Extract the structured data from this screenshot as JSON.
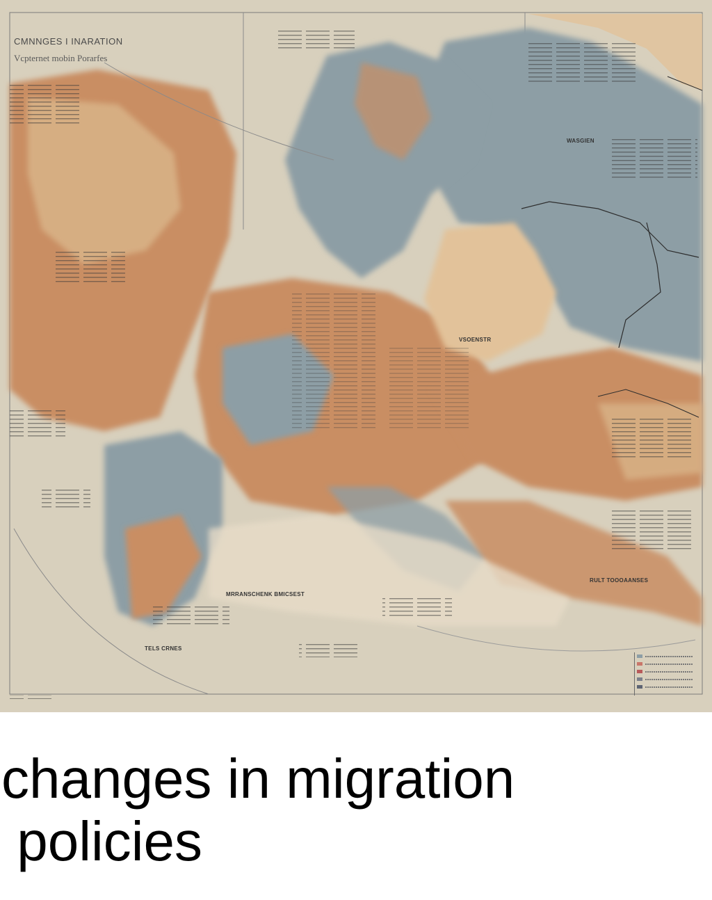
{
  "map": {
    "title": "CMNNGES I INARATION",
    "subtitle": "Vcpternet mobin Porarfes",
    "labels": [
      {
        "name": "label-wasgien",
        "text": "WASGIEN"
      },
      {
        "name": "label-vsoenstr",
        "text": "VSOENSTR"
      },
      {
        "name": "label-mrranschenk",
        "text": "MRRANSCHENK BMICSEST"
      },
      {
        "name": "label-ruld-toooaanses",
        "text": "RULT TOOOAANSES"
      },
      {
        "name": "label-tels-crnes",
        "text": "TELS CRNES"
      }
    ],
    "colors": {
      "background": "#d8d0bd",
      "land_tan": "#d9b488",
      "land_orange": "#c98e64",
      "land_blue": "#8d9ea5",
      "land_light": "#e7dcc8"
    }
  },
  "caption": {
    "text": "changes in migration\n policies"
  }
}
